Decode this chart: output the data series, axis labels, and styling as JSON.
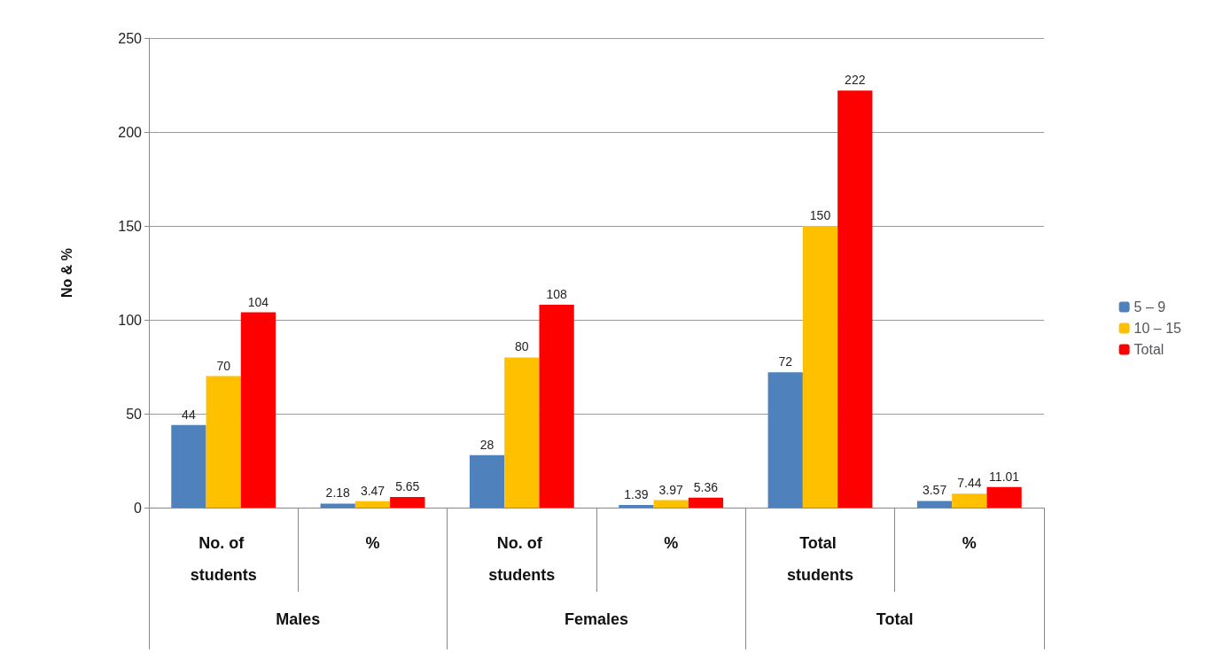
{
  "chart_data": {
    "type": "bar",
    "ylabel": "No & %",
    "categories": [
      "No. of students",
      "%",
      "No. of students",
      "%",
      "Total students",
      "%"
    ],
    "annotations": [
      "Males",
      "Females",
      "Total"
    ],
    "series": [
      {
        "name": "5 – 9",
        "color": "#4f81bd",
        "values": [
          44,
          2.18,
          28,
          1.39,
          72,
          3.57
        ]
      },
      {
        "name": "10 – 15",
        "color": "#ffc000",
        "values": [
          70,
          3.47,
          80,
          3.97,
          150,
          7.44
        ]
      },
      {
        "name": "Total",
        "color": "#ff0000",
        "values": [
          104,
          5.65,
          108,
          5.36,
          222,
          11.01
        ]
      }
    ],
    "ylim": [
      0,
      250
    ],
    "yticks": [
      0,
      50,
      100,
      150,
      200,
      250
    ],
    "grid": "y",
    "legend": "right",
    "data_labels": true
  }
}
